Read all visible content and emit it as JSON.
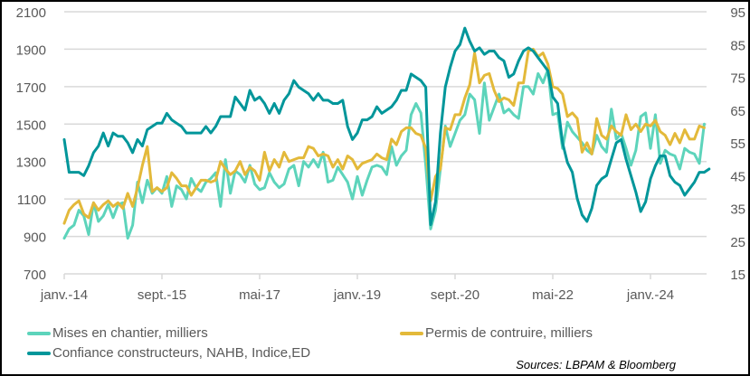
{
  "chart_data": {
    "type": "line",
    "title": "",
    "xlabel": "",
    "ylabel": "",
    "x_tick_labels": [
      "janv.-14",
      "sept.-15",
      "mai-17",
      "janv.-19",
      "sept.-20",
      "mai-22",
      "janv.-24"
    ],
    "x_tick_dates": [
      "2014-01",
      "2015-09",
      "2017-05",
      "2019-01",
      "2020-09",
      "2022-05",
      "2024-01"
    ],
    "y_left": {
      "lim": [
        700,
        2100
      ],
      "ticks": [
        "700",
        "900",
        "1100",
        "1300",
        "1500",
        "1700",
        "1900",
        "2100"
      ]
    },
    "y_right": {
      "lim": [
        15,
        95
      ],
      "ticks": [
        "15",
        "25",
        "35",
        "45",
        "55",
        "65",
        "75",
        "85",
        "95"
      ]
    },
    "grid": true,
    "legend_placement": "bottom",
    "series": [
      {
        "name": "Mises en chantier, milliers",
        "axis": "left",
        "color": "#5dd4bb",
        "start": "2014-01",
        "frequency": "monthly",
        "values": [
          890,
          940,
          960,
          1040,
          1010,
          910,
          1080,
          980,
          1010,
          1070,
          1000,
          1070,
          1080,
          890,
          960,
          1190,
          1080,
          1200,
          1130,
          1160,
          1130,
          1220,
          1060,
          1170,
          1150,
          1100,
          1210,
          1160,
          1140,
          1190,
          1210,
          1240,
          1060,
          1310,
          1130,
          1250,
          1230,
          1190,
          1280,
          1180,
          1150,
          1160,
          1240,
          1190,
          1160,
          1180,
          1260,
          1280,
          1170,
          1300,
          1270,
          1310,
          1270,
          1350,
          1190,
          1200,
          1270,
          1230,
          1190,
          1100,
          1220,
          1120,
          1200,
          1270,
          1280,
          1270,
          1230,
          1380,
          1280,
          1330,
          1360,
          1550,
          1610,
          1560,
          1280,
          940,
          1040,
          1260,
          1490,
          1380,
          1450,
          1520,
          1550,
          1660,
          1630,
          1450,
          1720,
          1520,
          1590,
          1660,
          1560,
          1580,
          1550,
          1530,
          1700,
          1700,
          1660,
          1770,
          1720,
          1790,
          1550,
          1560,
          1370,
          1510,
          1460,
          1430,
          1400,
          1360,
          1340,
          1440,
          1380,
          1350,
          1580,
          1420,
          1450,
          1370,
          1280,
          1360,
          1540,
          1560,
          1370,
          1550,
          1290,
          1360,
          1340,
          1330,
          1260,
          1370,
          1350,
          1340,
          1290,
          1500
        ]
      },
      {
        "name": "Permis de contruire, milliers",
        "axis": "left",
        "color": "#e3b93a",
        "start": "2014-01",
        "frequency": "monthly",
        "values": [
          970,
          1040,
          1070,
          1090,
          1020,
          1000,
          1080,
          1040,
          1070,
          1090,
          1060,
          1080,
          1050,
          1130,
          1060,
          1160,
          1280,
          1380,
          1140,
          1160,
          1140,
          1160,
          1240,
          1210,
          1170,
          1170,
          1120,
          1160,
          1200,
          1200,
          1190,
          1200,
          1300,
          1260,
          1230,
          1250,
          1300,
          1230,
          1270,
          1250,
          1200,
          1350,
          1250,
          1310,
          1270,
          1350,
          1300,
          1310,
          1320,
          1320,
          1380,
          1370,
          1330,
          1340,
          1330,
          1270,
          1310,
          1260,
          1330,
          1310,
          1260,
          1290,
          1300,
          1310,
          1340,
          1320,
          1310,
          1420,
          1390,
          1460,
          1480,
          1480,
          1450,
          1440,
          1370,
          1090,
          1220,
          1260,
          1480,
          1470,
          1550,
          1550,
          1640,
          1710,
          1880,
          1720,
          1760,
          1770,
          1680,
          1620,
          1640,
          1630,
          1600,
          1720,
          1720,
          1890,
          1900,
          1860,
          1880,
          1820,
          1700,
          1690,
          1660,
          1540,
          1560,
          1530,
          1350,
          1400,
          1340,
          1530,
          1440,
          1420,
          1490,
          1460,
          1440,
          1550,
          1470,
          1500,
          1460,
          1500,
          1490,
          1520,
          1460,
          1440,
          1390,
          1450,
          1400,
          1470,
          1420,
          1420,
          1490,
          1480
        ]
      },
      {
        "name": "Confiance constructeurs,  NAHB, Indice,ED",
        "axis": "right",
        "color": "#00969a",
        "start": "2014-01",
        "frequency": "monthly",
        "values": [
          56,
          46,
          46,
          46,
          45,
          48,
          52,
          54,
          58,
          54,
          58,
          57,
          57,
          55,
          52,
          56,
          54,
          59,
          60,
          61,
          61,
          64,
          62,
          61,
          60,
          58,
          58,
          58,
          58,
          60,
          58,
          60,
          63,
          63,
          63,
          69,
          67,
          65,
          71,
          68,
          69,
          67,
          64,
          67,
          64,
          68,
          70,
          74,
          72,
          71,
          70,
          68,
          70,
          68,
          68,
          67,
          67,
          68,
          60,
          56,
          58,
          62,
          62,
          63,
          66,
          64,
          65,
          66,
          68,
          71,
          71,
          76,
          75,
          74,
          72,
          30,
          37,
          58,
          72,
          78,
          83,
          85,
          90,
          86,
          83,
          84,
          82,
          83,
          83,
          81,
          80,
          75,
          76,
          80,
          83,
          84,
          83,
          81,
          79,
          77,
          69,
          67,
          55,
          49,
          46,
          38,
          33,
          31,
          35,
          42,
          44,
          45,
          50,
          55,
          56,
          50,
          45,
          40,
          34,
          37,
          44,
          48,
          51,
          51,
          45,
          43,
          42,
          39,
          41,
          43,
          46,
          46,
          47
        ]
      }
    ]
  },
  "source": "Sources: LBPAM & Bloomberg"
}
